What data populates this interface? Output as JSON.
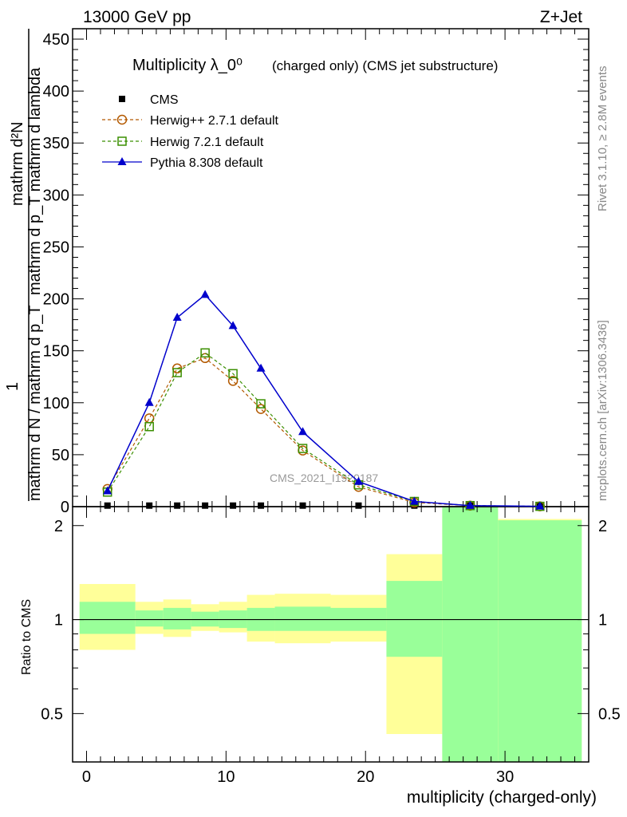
{
  "header": {
    "left": "13000 GeV pp",
    "right": "Z+Jet"
  },
  "side_text": {
    "rivet": "Rivet 3.1.10, ≥ 2.8M events",
    "mcplots": "mcplots.cern.ch [arXiv:1306.3436]"
  },
  "chart_data": [
    {
      "type": "line",
      "title": "Multiplicity λ_0⁰",
      "subtitle": "(charged only) (CMS jet substructure)",
      "ylabel_top": "mathrm d²N",
      "ylabel_mid": "mathrm d p_T mathrm d lambda",
      "ylabel_bottom": "mathrm d N / mathrm d p_T",
      "ylabel_frac_left": "1",
      "ylabel_lead": "mathrm d p_T",
      "ylim": [
        0,
        460
      ],
      "xlim": [
        -1,
        36
      ],
      "yticks": [
        0,
        50,
        100,
        150,
        200,
        250,
        300,
        350,
        400,
        450
      ],
      "watermark": "CMS_2021_I1920187",
      "legend_position": "top-left",
      "series": [
        {
          "name": "CMS",
          "color": "#000000",
          "marker": "square-filled",
          "x": [
            1.5,
            4.5,
            6.5,
            8.5,
            10.5,
            12.5,
            15.5,
            19.5,
            23.5,
            27.5,
            32.5
          ],
          "y": [
            1,
            1,
            1,
            1,
            1,
            1,
            1,
            1,
            1,
            1,
            1
          ]
        },
        {
          "name": "Herwig++ 2.7.1 default",
          "color": "#b35900",
          "marker": "circle-open",
          "dash": true,
          "x": [
            1.5,
            4.5,
            6.5,
            8.5,
            10.5,
            12.5,
            15.5,
            19.5,
            23.5,
            27.5,
            32.5
          ],
          "y": [
            17,
            85,
            133,
            143,
            121,
            94,
            54,
            19,
            4,
            1,
            0.3
          ]
        },
        {
          "name": "Herwig 7.2.1 default",
          "color": "#3a8f00",
          "marker": "square-open",
          "dash": true,
          "x": [
            1.5,
            4.5,
            6.5,
            8.5,
            10.5,
            12.5,
            15.5,
            19.5,
            23.5,
            27.5,
            32.5
          ],
          "y": [
            14,
            77,
            129,
            148,
            128,
            99,
            56,
            21,
            5,
            1,
            0.3
          ]
        },
        {
          "name": "Pythia 8.308 default",
          "color": "#0000cc",
          "marker": "triangle-filled",
          "dash": false,
          "x": [
            1.5,
            4.5,
            6.5,
            8.5,
            10.5,
            12.5,
            15.5,
            19.5,
            23.5,
            27.5,
            32.5
          ],
          "y": [
            15,
            100,
            182,
            204,
            174,
            133,
            72,
            24,
            5,
            1,
            0.3
          ]
        }
      ]
    },
    {
      "type": "area",
      "ylabel": "Ratio to CMS",
      "xlabel": "multiplicity (charged-only)",
      "xlim": [
        -1,
        36
      ],
      "ylim": [
        0.35,
        2.3
      ],
      "y_scale": "log",
      "xticks": [
        0,
        10,
        20,
        30
      ],
      "yticks": [
        0.5,
        1,
        2
      ],
      "reference": 1,
      "bands": {
        "bin_edges": [
          -0.5,
          3.5,
          5.5,
          7.5,
          9.5,
          11.5,
          13.5,
          17.5,
          21.5,
          25.5,
          29.5,
          35.5
        ],
        "outer_color": "#ffff99",
        "inner_color": "#99ff99",
        "outer_low": [
          0.8,
          0.9,
          0.88,
          0.92,
          0.91,
          0.85,
          0.84,
          0.85,
          0.43,
          0.35,
          0.35
        ],
        "outer_high": [
          1.3,
          1.14,
          1.16,
          1.12,
          1.14,
          1.2,
          1.21,
          1.2,
          1.62,
          2.3,
          2.1
        ],
        "inner_low": [
          0.9,
          0.95,
          0.93,
          0.95,
          0.94,
          0.92,
          0.92,
          0.92,
          0.76,
          0.35,
          0.35
        ],
        "inner_high": [
          1.14,
          1.07,
          1.09,
          1.06,
          1.07,
          1.09,
          1.1,
          1.09,
          1.33,
          2.3,
          2.08
        ]
      }
    }
  ]
}
